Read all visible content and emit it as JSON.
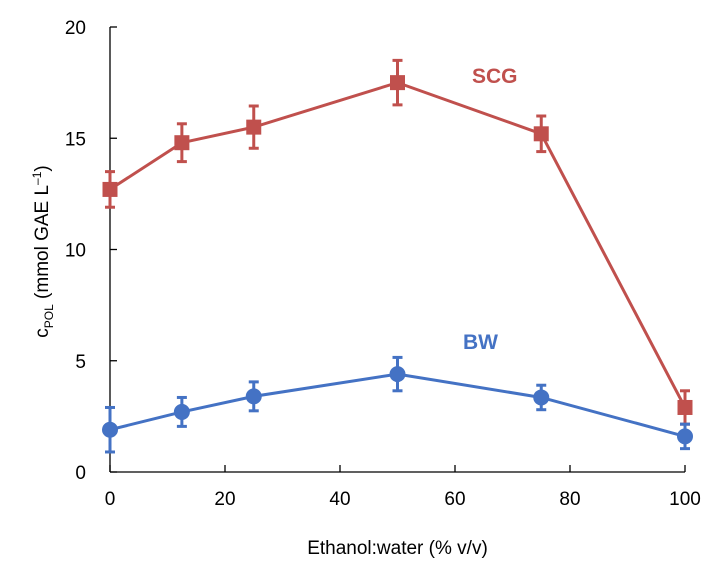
{
  "chart_data": {
    "type": "line",
    "title": "",
    "xlabel": "Ethanol:water (% v/v)",
    "ylabel": {
      "prefix": "c",
      "subscript": "POL",
      "suffix": " (mmol GAE L",
      "superscript": "–1",
      "close": ")"
    },
    "xlim": [
      0,
      100
    ],
    "ylim": [
      0,
      20
    ],
    "xticks": [
      0,
      20,
      40,
      60,
      80,
      100
    ],
    "yticks": [
      0,
      5,
      10,
      15,
      20
    ],
    "grid": false,
    "legend": "none",
    "series": [
      {
        "name": "SCG",
        "color": "#C0504D",
        "marker": "square",
        "x": [
          0,
          12.5,
          25,
          50,
          75,
          100
        ],
        "y": [
          12.7,
          14.8,
          15.5,
          17.5,
          15.2,
          2.9
        ],
        "err": [
          0.8,
          0.85,
          0.95,
          1.0,
          0.8,
          0.75
        ]
      },
      {
        "name": "BW",
        "color": "#4472C4",
        "marker": "circle",
        "x": [
          0,
          12.5,
          25,
          50,
          75,
          100
        ],
        "y": [
          1.9,
          2.7,
          3.4,
          4.4,
          3.35,
          1.6
        ],
        "err": [
          1.0,
          0.65,
          0.65,
          0.75,
          0.55,
          0.55
        ]
      }
    ]
  }
}
